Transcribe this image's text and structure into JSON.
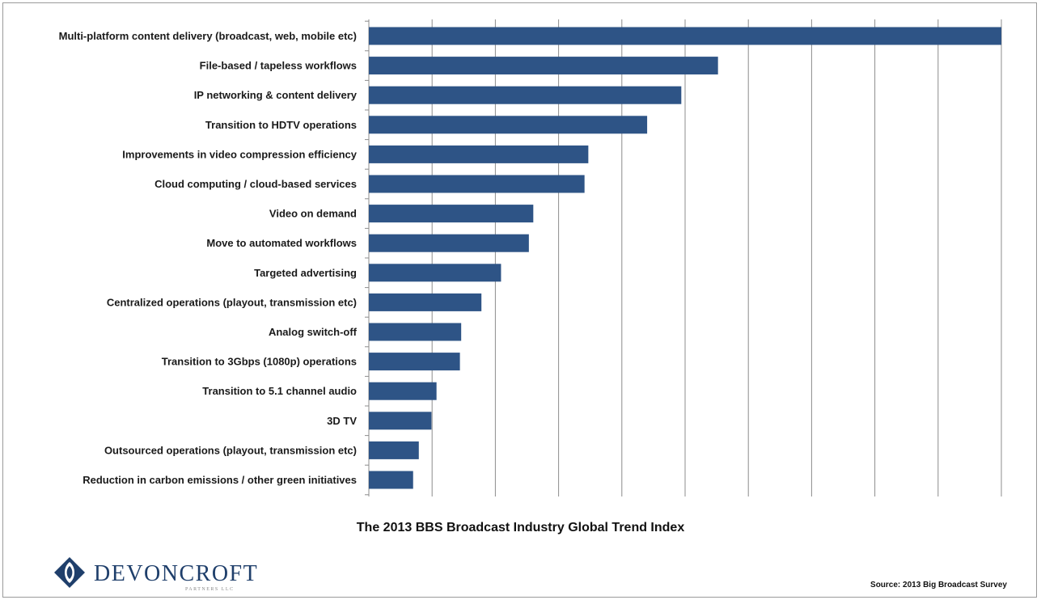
{
  "chart_data": {
    "type": "bar",
    "orientation": "horizontal",
    "title": "The 2013 BBS Broadcast Industry Global Trend Index",
    "categories": [
      "Multi-platform content delivery (broadcast, web, mobile etc)",
      "File-based  / tapeless workflows",
      "IP networking & content delivery",
      "Transition to HDTV operations",
      "Improvements in video compression efficiency",
      "Cloud computing / cloud-based services",
      "Video on demand",
      "Move to automated workflows",
      "Targeted advertising",
      "Centralized operations (playout, transmission etc)",
      "Analog switch-off",
      "Transition to 3Gbps (1080p) operations",
      "Transition to 5.1 channel audio",
      "3D TV",
      "Outsourced operations (playout, transmission etc)",
      "Reduction in carbon emissions / other green initiatives"
    ],
    "values": [
      100,
      55.2,
      49.4,
      44.0,
      34.7,
      34.1,
      26.0,
      25.3,
      20.9,
      17.8,
      14.6,
      14.4,
      10.7,
      9.9,
      7.9,
      7.0
    ],
    "xlim": [
      0,
      100
    ],
    "grid": true,
    "bar_color": "#2e5486",
    "grid_color": "#8c8c8c"
  },
  "source": "Source: 2013 Big Broadcast Survey",
  "logo": {
    "name": "DEVONCROFT",
    "subtitle": "PARTNERS LLC",
    "colors": {
      "dark": "#1f3f6b",
      "light": "#ffffff"
    }
  }
}
